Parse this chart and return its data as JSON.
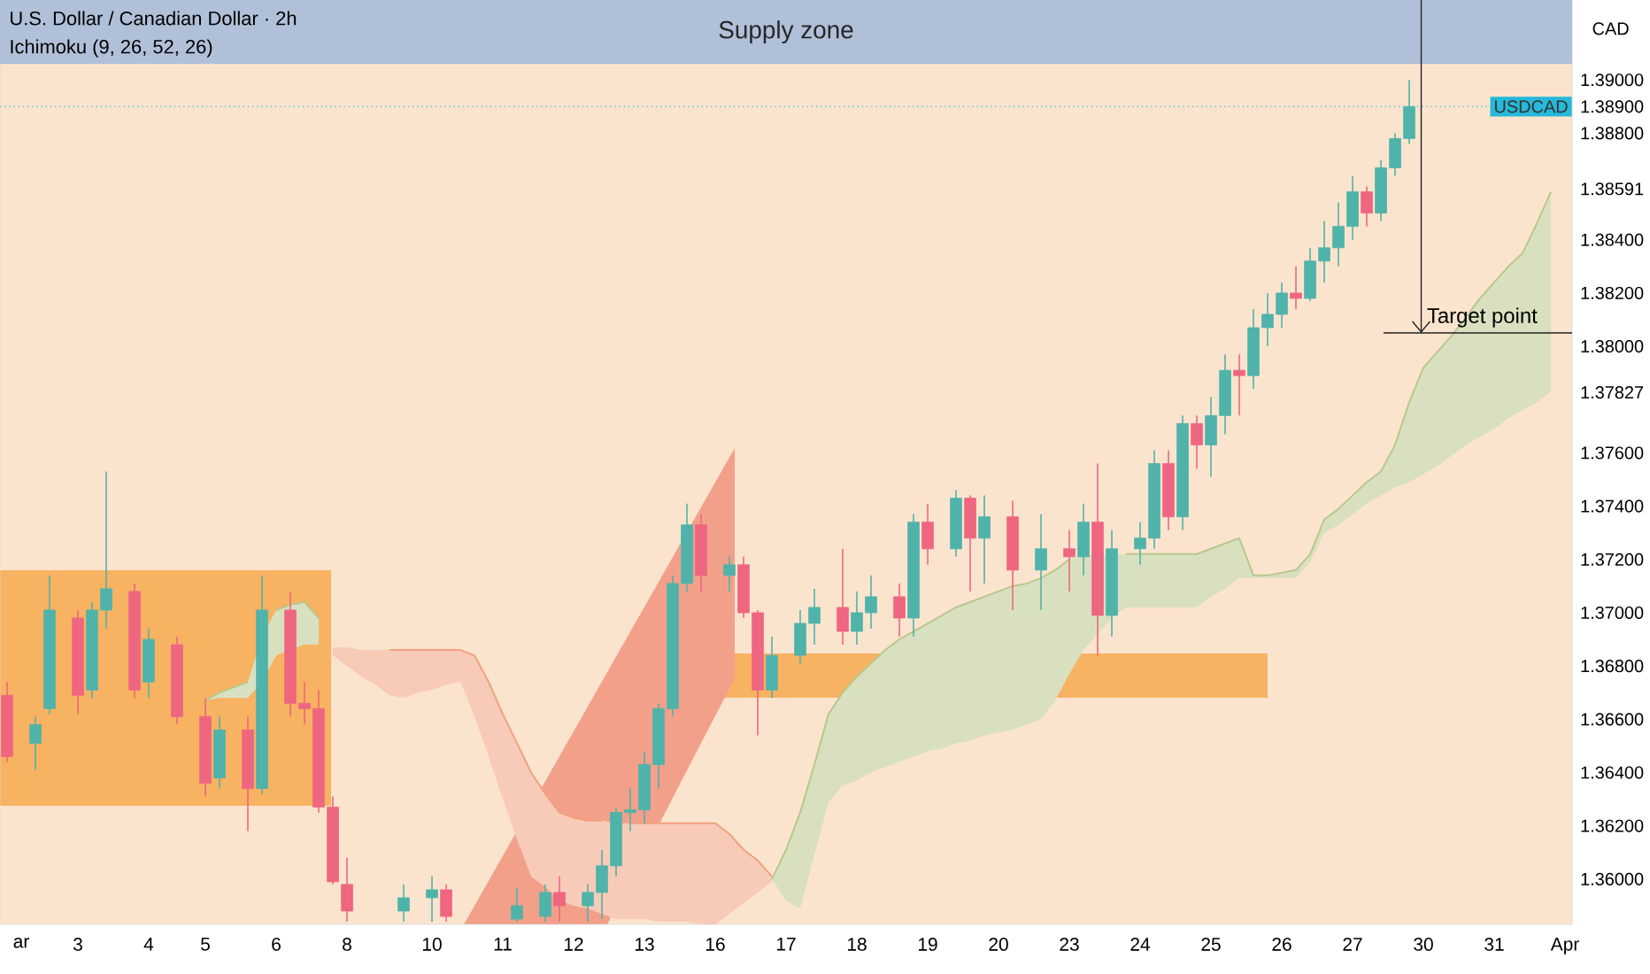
{
  "chart_data": {
    "type": "candlestick",
    "title": "U.S. Dollar / Canadian Dollar · 2h",
    "subtitle": "Ichimoku (9, 26, 52, 26)",
    "categories": [
      null,
      "ar",
      null,
      null,
      null,
      "3",
      null,
      null,
      null,
      null,
      "4",
      null,
      null,
      null,
      "5",
      null,
      null,
      null,
      null,
      "6",
      null,
      null,
      null,
      null,
      "8",
      null,
      null,
      null,
      null,
      null,
      "10",
      null,
      null,
      null,
      null,
      "11",
      null,
      null,
      null,
      null,
      "12",
      null,
      null,
      null,
      null,
      "13",
      null,
      null,
      null,
      null,
      "16",
      null,
      null,
      null,
      null,
      "17",
      null,
      null,
      null,
      null,
      "18",
      null,
      null,
      null,
      null,
      "19",
      null,
      null,
      null,
      null,
      "20",
      null,
      null,
      null,
      null,
      "23",
      null,
      null,
      null,
      null,
      "24",
      null,
      null,
      null,
      null,
      "25",
      null,
      null,
      null,
      null,
      "26",
      null,
      null,
      null,
      null,
      "27",
      null,
      null,
      null,
      null,
      "30",
      null,
      null,
      null,
      null,
      "31",
      null,
      null,
      null,
      null,
      "Apr"
    ],
    "ylim": [
      1.3583,
      1.393
    ],
    "yticks": [
      {
        "value": 1.36,
        "label": "1.36000"
      },
      {
        "value": 1.362,
        "label": "1.36200"
      },
      {
        "value": 1.364,
        "label": "1.36400"
      },
      {
        "value": 1.366,
        "label": "1.36600"
      },
      {
        "value": 1.368,
        "label": "1.36800"
      },
      {
        "value": 1.37,
        "label": "1.37000"
      },
      {
        "value": 1.372,
        "label": "1.37200"
      },
      {
        "value": 1.374,
        "label": "1.37400"
      },
      {
        "value": 1.376,
        "label": "1.37600"
      },
      {
        "value": 1.37827,
        "label": "1.37827"
      },
      {
        "value": 1.38,
        "label": "1.38000"
      },
      {
        "value": 1.382,
        "label": "1.38200"
      },
      {
        "value": 1.384,
        "label": "1.38400"
      },
      {
        "value": 1.38591,
        "label": "1.38591"
      },
      {
        "value": 1.388,
        "label": "1.38800"
      },
      {
        "value": 1.389,
        "label": "1.38900"
      },
      {
        "value": 1.39,
        "label": "1.39000"
      }
    ],
    "bands": [
      {
        "axis": "y",
        "from": 1.3906,
        "to": 1.393,
        "label": "Supply zone",
        "color": "#b0c0d8"
      }
    ],
    "ref_lines": [
      {
        "axis": "y",
        "value": 1.389,
        "label": "USDCAD",
        "color": "#26b8d8",
        "line_style": "dotted"
      },
      {
        "axis": "y",
        "value": 1.3805,
        "label": "Target point",
        "color": "#222222",
        "line_style": "solid"
      }
    ],
    "annotations": [
      "CAD"
    ],
    "series": [
      {
        "type": "line",
        "color": "#b9c78c",
        "values": [
          null,
          null,
          null,
          null,
          null,
          null,
          null,
          null,
          null,
          null,
          null,
          null,
          null,
          null,
          1.3667,
          1.367,
          1.3672,
          1.3674,
          null,
          1.3701,
          1.3703,
          1.3704,
          1.3698,
          null,
          null,
          null,
          null,
          null,
          null,
          null,
          null,
          null,
          null,
          null,
          null,
          null,
          null,
          null,
          null,
          null,
          null,
          null,
          null,
          null,
          null,
          null,
          null,
          null,
          null,
          null,
          null,
          null,
          null,
          null,
          null,
          null,
          null,
          null,
          null,
          null,
          null,
          null,
          null,
          null,
          null,
          null,
          null,
          null,
          null,
          null,
          null,
          null,
          null,
          null,
          null,
          null,
          null,
          null,
          null,
          null,
          null,
          null,
          null,
          null,
          null,
          null,
          null,
          null,
          null,
          null,
          null,
          null,
          null,
          null,
          null,
          null,
          null,
          null,
          null,
          null,
          null,
          null,
          null,
          null,
          null,
          null,
          null,
          null,
          null,
          null,
          null
        ],
        "upper": [
          null,
          null,
          null,
          null,
          null,
          null,
          null,
          null,
          null,
          null,
          null,
          null,
          null,
          null,
          1.3667,
          1.367,
          1.3672,
          1.3674,
          1.3691,
          1.3701,
          1.3703,
          1.3704,
          1.3698,
          null,
          null,
          null,
          null,
          null,
          null,
          null,
          null,
          null,
          null,
          null,
          null,
          null,
          null,
          null,
          null,
          null,
          null,
          null,
          null,
          null,
          null,
          null,
          null,
          null,
          null,
          null,
          null,
          null,
          null,
          null,
          null,
          null,
          null,
          null,
          null,
          null,
          null,
          null,
          null,
          null,
          null,
          null,
          null,
          null,
          null,
          null,
          null,
          null,
          null,
          null,
          null,
          null,
          null,
          null,
          null,
          null,
          null,
          null,
          null,
          null,
          null,
          null,
          null,
          null,
          null,
          null,
          null,
          null,
          null,
          null,
          null,
          null,
          null,
          null,
          null,
          null,
          null,
          null,
          null,
          null,
          null,
          null,
          null,
          null,
          null,
          null,
          null
        ],
        "lower": [
          null,
          null,
          null,
          null,
          null,
          null,
          null,
          null,
          null,
          null,
          null,
          null,
          null,
          null,
          1.3667,
          1.3668,
          1.3668,
          1.3668,
          1.3674,
          1.3684,
          1.3686,
          1.3688,
          1.3688,
          null,
          null,
          null,
          null,
          null,
          null,
          null,
          null,
          null,
          null,
          null,
          null,
          null,
          null,
          null,
          null,
          null,
          null,
          null,
          null,
          null,
          null,
          null,
          null,
          null,
          null,
          null,
          null,
          null,
          null,
          null,
          null,
          null,
          null,
          null,
          null,
          null,
          null,
          null,
          null,
          null,
          null,
          null,
          null,
          null,
          null,
          null,
          null,
          null,
          null,
          null,
          null,
          null,
          null,
          null,
          null,
          null,
          null,
          null,
          null,
          null,
          null,
          null,
          null,
          null,
          null,
          null,
          null,
          null,
          null,
          null,
          null,
          null,
          null,
          null,
          null,
          null,
          null,
          null,
          null,
          null,
          null,
          null,
          null,
          null,
          null,
          null,
          null
        ]
      },
      {
        "type": "line",
        "color": "#f2a07e",
        "values": [
          null,
          null,
          null,
          null,
          null,
          null,
          null,
          null,
          null,
          null,
          null,
          null,
          null,
          null,
          null,
          null,
          null,
          null,
          null,
          null,
          null,
          null,
          null,
          null,
          null,
          null,
          null,
          1.3686,
          1.3686,
          1.3686,
          1.3686,
          1.3686,
          1.3686,
          1.3684,
          1.3674,
          1.3662,
          1.3651,
          1.364,
          1.3632,
          1.3625,
          1.3623,
          1.3622,
          1.3622,
          null,
          1.3621,
          1.3621,
          1.3621,
          1.3621,
          1.3621,
          1.3621,
          1.3621,
          1.3617,
          1.3611,
          1.3607,
          1.3601,
          null,
          null,
          null,
          null,
          null,
          null,
          null,
          null,
          null,
          null,
          null,
          null,
          null,
          null,
          null,
          null,
          null,
          null,
          null,
          null,
          null,
          null,
          null,
          null,
          null,
          null,
          null,
          null,
          null,
          null,
          null,
          null,
          null,
          null,
          null,
          null,
          null,
          null,
          null,
          null,
          null,
          null,
          null,
          null,
          null,
          null,
          null,
          null,
          null,
          null,
          null,
          null,
          null,
          null,
          null,
          null
        ],
        "upper": [
          null,
          null,
          null,
          null,
          null,
          null,
          null,
          null,
          null,
          null,
          null,
          null,
          null,
          null,
          null,
          null,
          null,
          null,
          null,
          null,
          null,
          null,
          null,
          1.3687,
          1.3687,
          1.3686,
          1.3686,
          1.3686,
          1.3686,
          1.3686,
          1.3686,
          1.3686,
          1.3686,
          1.3684,
          1.3674,
          1.3662,
          1.3651,
          1.364,
          1.3632,
          1.3625,
          1.3623,
          1.3622,
          1.3622,
          1.3621,
          1.3621,
          1.3621,
          1.3621,
          1.3621,
          1.3621,
          1.3621,
          1.3621,
          1.3617,
          1.3611,
          1.3607,
          1.3601,
          null,
          null,
          null,
          null,
          null,
          null,
          null,
          null,
          null,
          null,
          null,
          null,
          null,
          null,
          null,
          null,
          null,
          null,
          null,
          null,
          null,
          null,
          null,
          null,
          null,
          null,
          null,
          null,
          null,
          null,
          null,
          null,
          null,
          null,
          null,
          null,
          null,
          null,
          null,
          null,
          null,
          null,
          null,
          null,
          null,
          null,
          null,
          null,
          null,
          null,
          null,
          null,
          null,
          null,
          null,
          null
        ],
        "lower": [
          null,
          null,
          null,
          null,
          null,
          null,
          null,
          null,
          null,
          null,
          null,
          null,
          null,
          null,
          null,
          null,
          null,
          null,
          null,
          null,
          null,
          null,
          null,
          1.3684,
          1.368,
          1.3676,
          1.3673,
          1.3669,
          1.3668,
          1.367,
          1.3671,
          1.3673,
          1.3674,
          1.3661,
          1.3646,
          1.363,
          1.3615,
          1.3601,
          1.3597,
          1.3592,
          1.359,
          1.3589,
          1.3587,
          1.3585,
          1.3585,
          1.3585,
          1.3584,
          1.3584,
          1.3584,
          1.3583,
          1.3583,
          1.3587,
          1.3591,
          1.3595,
          1.3599,
          null,
          null,
          null,
          null,
          null,
          null,
          null,
          null,
          null,
          null,
          null,
          null,
          null,
          null,
          null,
          null,
          null,
          null,
          null,
          null,
          null,
          null,
          null,
          null,
          null,
          null,
          null,
          null,
          null,
          null,
          null,
          null,
          null,
          null,
          null,
          null,
          null,
          null,
          null,
          null,
          null,
          null,
          null,
          null,
          null,
          null,
          null,
          null,
          null,
          null,
          null,
          null,
          null,
          null,
          null,
          null
        ]
      },
      {
        "type": "line",
        "color": "#b9c78c",
        "values": [
          null,
          null,
          null,
          null,
          null,
          null,
          null,
          null,
          null,
          null,
          null,
          null,
          null,
          null,
          null,
          null,
          null,
          null,
          null,
          null,
          null,
          null,
          null,
          null,
          null,
          null,
          null,
          null,
          null,
          null,
          null,
          null,
          null,
          null,
          null,
          null,
          null,
          null,
          null,
          null,
          null,
          null,
          null,
          null,
          null,
          null,
          null,
          null,
          null,
          null,
          null,
          null,
          null,
          null,
          1.36,
          1.3611,
          1.3625,
          1.3643,
          1.3662,
          1.367,
          1.3676,
          1.3681,
          1.3686,
          1.369,
          1.3693,
          1.3696,
          1.3699,
          1.3702,
          1.3704,
          1.3706,
          1.3708,
          1.371,
          1.3711,
          1.3713,
          1.3716,
          1.372,
          null,
          null,
          null,
          1.3722,
          1.3722,
          1.3722,
          1.3722,
          1.3722,
          1.3722,
          1.3724,
          1.3726,
          1.3728,
          1.3714,
          1.3714,
          1.3715,
          1.3716,
          1.3722,
          1.3735,
          1.3739,
          1.3744,
          1.3749,
          1.3753,
          1.3763,
          1.3779,
          1.3792,
          1.3798,
          1.3804,
          1.3811,
          1.3818,
          1.3824,
          1.383,
          1.3835,
          1.3846,
          1.3858,
          null
        ],
        "upper": [
          null,
          null,
          null,
          null,
          null,
          null,
          null,
          null,
          null,
          null,
          null,
          null,
          null,
          null,
          null,
          null,
          null,
          null,
          null,
          null,
          null,
          null,
          null,
          null,
          null,
          null,
          null,
          null,
          null,
          null,
          null,
          null,
          null,
          null,
          null,
          null,
          null,
          null,
          null,
          null,
          null,
          null,
          null,
          null,
          null,
          null,
          null,
          null,
          null,
          null,
          null,
          null,
          null,
          null,
          1.36,
          1.3611,
          1.3625,
          1.3643,
          1.3662,
          1.367,
          1.3676,
          1.3681,
          1.3686,
          1.369,
          1.3693,
          1.3696,
          1.3699,
          1.3702,
          1.3704,
          1.3706,
          1.3708,
          1.371,
          1.3711,
          1.3713,
          1.3716,
          1.372,
          1.3722,
          1.3722,
          1.3722,
          1.3722,
          1.3722,
          1.3722,
          1.3722,
          1.3722,
          1.3722,
          1.3724,
          1.3726,
          1.3728,
          1.3714,
          1.3714,
          1.3715,
          1.3716,
          1.3722,
          1.3735,
          1.3739,
          1.3744,
          1.3749,
          1.3753,
          1.3763,
          1.3779,
          1.3792,
          1.3798,
          1.3804,
          1.3811,
          1.3818,
          1.3824,
          1.383,
          1.3835,
          1.3846,
          1.3858,
          null
        ],
        "lower": [
          null,
          null,
          null,
          null,
          null,
          null,
          null,
          null,
          null,
          null,
          null,
          null,
          null,
          null,
          null,
          null,
          null,
          null,
          null,
          null,
          null,
          null,
          null,
          null,
          null,
          null,
          null,
          null,
          null,
          null,
          null,
          null,
          null,
          null,
          null,
          null,
          null,
          null,
          null,
          null,
          null,
          null,
          null,
          null,
          null,
          null,
          null,
          null,
          null,
          null,
          null,
          null,
          null,
          null,
          1.36,
          1.3592,
          1.3589,
          1.3609,
          1.3629,
          1.3635,
          1.3637,
          1.364,
          1.3642,
          1.3644,
          1.3646,
          1.3648,
          1.3649,
          1.3651,
          1.3652,
          1.3654,
          1.3655,
          1.3656,
          1.3658,
          1.366,
          1.3667,
          1.3677,
          1.3686,
          1.3692,
          1.3698,
          1.3702,
          1.3702,
          1.3702,
          1.3702,
          1.3702,
          1.3702,
          1.3706,
          1.3709,
          1.3713,
          1.3713,
          1.3713,
          1.3713,
          1.3713,
          1.3719,
          1.373,
          1.3733,
          1.3737,
          1.3741,
          1.3744,
          1.3747,
          1.3749,
          1.3752,
          1.3755,
          1.3759,
          1.3763,
          1.3766,
          1.3769,
          1.3773,
          1.3776,
          1.3779,
          1.3783,
          null
        ]
      },
      {
        "color": "#4fb3aa",
        "ohlc": [
          null,
          null,
          [
            1.3651,
            1.3661,
            1.3641,
            1.3658
          ],
          [
            1.3664,
            1.3714,
            1.3662,
            1.3701
          ],
          null,
          null,
          [
            1.3671,
            1.3704,
            1.3668,
            1.3701
          ],
          [
            1.3701,
            1.3753,
            1.3694,
            1.3709
          ],
          null,
          null,
          [
            1.3674,
            1.3694,
            1.3668,
            1.369
          ],
          null,
          null,
          null,
          null,
          [
            1.3638,
            1.3661,
            1.3634,
            1.3656
          ],
          null,
          null,
          [
            1.3634,
            1.3714,
            1.3632,
            1.3701
          ],
          null,
          null,
          null,
          null,
          null,
          null,
          null,
          null,
          null,
          [
            1.3588,
            1.3598,
            1.3584,
            1.3593
          ],
          null,
          [
            1.3593,
            1.3601,
            1.3584,
            1.3596
          ],
          null,
          null,
          null,
          null,
          null,
          [
            1.3585,
            1.3597,
            1.3584,
            1.359
          ],
          null,
          [
            1.3586,
            1.3598,
            1.3584,
            1.3595
          ],
          null,
          null,
          [
            1.359,
            1.3598,
            1.3584,
            1.3595
          ],
          [
            1.3595,
            1.3611,
            1.3585,
            1.3605
          ],
          [
            1.3605,
            1.3627,
            1.3601,
            1.3625
          ],
          [
            1.3625,
            1.3634,
            1.3618,
            1.3626
          ],
          [
            1.3626,
            1.3648,
            1.3621,
            1.3643
          ],
          [
            1.3643,
            1.3666,
            1.3634,
            1.3664
          ],
          [
            1.3664,
            1.3714,
            1.3661,
            1.3711
          ],
          [
            1.3711,
            1.3741,
            1.3708,
            1.3733
          ],
          null,
          null,
          [
            1.3714,
            1.3721,
            1.3708,
            1.3718
          ],
          null,
          null,
          [
            1.3671,
            1.3691,
            1.3668,
            1.3684
          ],
          null,
          [
            1.3684,
            1.3701,
            1.3681,
            1.3696
          ],
          [
            1.3696,
            1.3709,
            1.3688,
            1.3702
          ],
          null,
          null,
          [
            1.3693,
            1.3708,
            1.3688,
            1.37
          ],
          [
            1.37,
            1.3714,
            1.3694,
            1.3706
          ],
          null,
          null,
          [
            1.3698,
            1.3737,
            1.3691,
            1.3734
          ],
          null,
          null,
          [
            1.3724,
            1.3746,
            1.3721,
            1.3743
          ],
          null,
          [
            1.3728,
            1.3744,
            1.3711,
            1.3736
          ],
          null,
          null,
          null,
          [
            1.3716,
            1.3737,
            1.3701,
            1.3724
          ],
          null,
          null,
          [
            1.3721,
            1.3741,
            1.3714,
            1.3734
          ],
          null,
          [
            1.3699,
            1.3731,
            1.3691,
            1.3724
          ],
          null,
          [
            1.3724,
            1.3734,
            1.3718,
            1.3728
          ],
          [
            1.3728,
            1.3761,
            1.3724,
            1.3756
          ],
          null,
          [
            1.3736,
            1.3774,
            1.3731,
            1.3771
          ],
          null,
          [
            1.3763,
            1.3781,
            1.3751,
            1.3774
          ],
          [
            1.3774,
            1.3797,
            1.3767,
            1.3791
          ],
          null,
          [
            1.3789,
            1.3814,
            1.3784,
            1.3807
          ],
          [
            1.3807,
            1.382,
            1.38,
            1.3812
          ],
          [
            1.3812,
            1.3824,
            1.3807,
            1.382
          ],
          null,
          [
            1.3818,
            1.3837,
            1.3817,
            1.3832
          ],
          [
            1.3832,
            1.3847,
            1.3824,
            1.3837
          ],
          [
            1.3837,
            1.3854,
            1.383,
            1.3845
          ],
          [
            1.3845,
            1.3864,
            1.384,
            1.3858
          ],
          null,
          [
            1.385,
            1.387,
            1.3847,
            1.3867
          ],
          [
            1.3867,
            1.388,
            1.3864,
            1.3878
          ],
          [
            1.3878,
            1.39,
            1.3876,
            1.389
          ],
          null,
          null,
          null,
          null,
          null,
          null,
          null,
          null,
          null,
          null,
          null
        ]
      },
      {
        "color": "#ef6680",
        "ohlc": [
          [
            1.3669,
            1.3674,
            1.3644,
            1.3646
          ],
          null,
          null,
          null,
          null,
          [
            1.3698,
            1.3701,
            1.3662,
            1.3669
          ],
          null,
          null,
          null,
          [
            1.3708,
            1.3711,
            1.3668,
            1.3671
          ],
          null,
          null,
          [
            1.3688,
            1.3691,
            1.3658,
            1.3661
          ],
          null,
          [
            1.3661,
            1.3668,
            1.3631,
            1.3636
          ],
          null,
          null,
          [
            1.3656,
            1.3661,
            1.3618,
            1.3634
          ],
          null,
          null,
          [
            1.3701,
            1.3708,
            1.3661,
            1.3666
          ],
          [
            1.3666,
            1.3674,
            1.3658,
            1.3664
          ],
          [
            1.3664,
            1.3671,
            1.3625,
            1.3627
          ],
          [
            1.3627,
            1.3631,
            1.3598,
            1.3599
          ],
          [
            1.3598,
            1.3608,
            1.3584,
            1.3588
          ],
          null,
          null,
          null,
          null,
          null,
          null,
          [
            1.3596,
            1.3598,
            1.3584,
            1.3586
          ],
          null,
          null,
          null,
          null,
          null,
          null,
          null,
          [
            1.3595,
            1.3601,
            1.3584,
            1.359
          ],
          null,
          null,
          null,
          null,
          null,
          null,
          null,
          null,
          null,
          [
            1.3733,
            1.3737,
            1.3708,
            1.3714
          ],
          null,
          null,
          [
            1.3718,
            1.3721,
            1.3698,
            1.37
          ],
          [
            1.37,
            1.3701,
            1.3654,
            1.3671
          ],
          null,
          null,
          null,
          null,
          null,
          [
            1.3702,
            1.3724,
            1.3688,
            1.3693
          ],
          null,
          null,
          null,
          [
            1.3706,
            1.3711,
            1.3691,
            1.3698
          ],
          null,
          [
            1.3734,
            1.3741,
            1.3718,
            1.3724
          ],
          null,
          null,
          [
            1.3743,
            1.3744,
            1.3708,
            1.3728
          ],
          null,
          null,
          [
            1.3736,
            1.3742,
            1.3701,
            1.3716
          ],
          null,
          null,
          null,
          [
            1.3724,
            1.3731,
            1.3708,
            1.3721
          ],
          null,
          [
            1.3734,
            1.3756,
            1.3684,
            1.3699
          ],
          null,
          null,
          null,
          null,
          [
            1.3756,
            1.3761,
            1.3731,
            1.3736
          ],
          null,
          [
            1.3771,
            1.3774,
            1.3754,
            1.3763
          ],
          null,
          null,
          [
            1.3791,
            1.3797,
            1.3774,
            1.3789
          ],
          null,
          null,
          null,
          [
            1.382,
            1.383,
            1.3814,
            1.3818
          ],
          null,
          null,
          null,
          null,
          [
            1.3858,
            1.386,
            1.3845,
            1.385
          ],
          null,
          null,
          null,
          null,
          null,
          null,
          null,
          null,
          null,
          null,
          null,
          null,
          null,
          null
        ]
      }
    ]
  }
}
